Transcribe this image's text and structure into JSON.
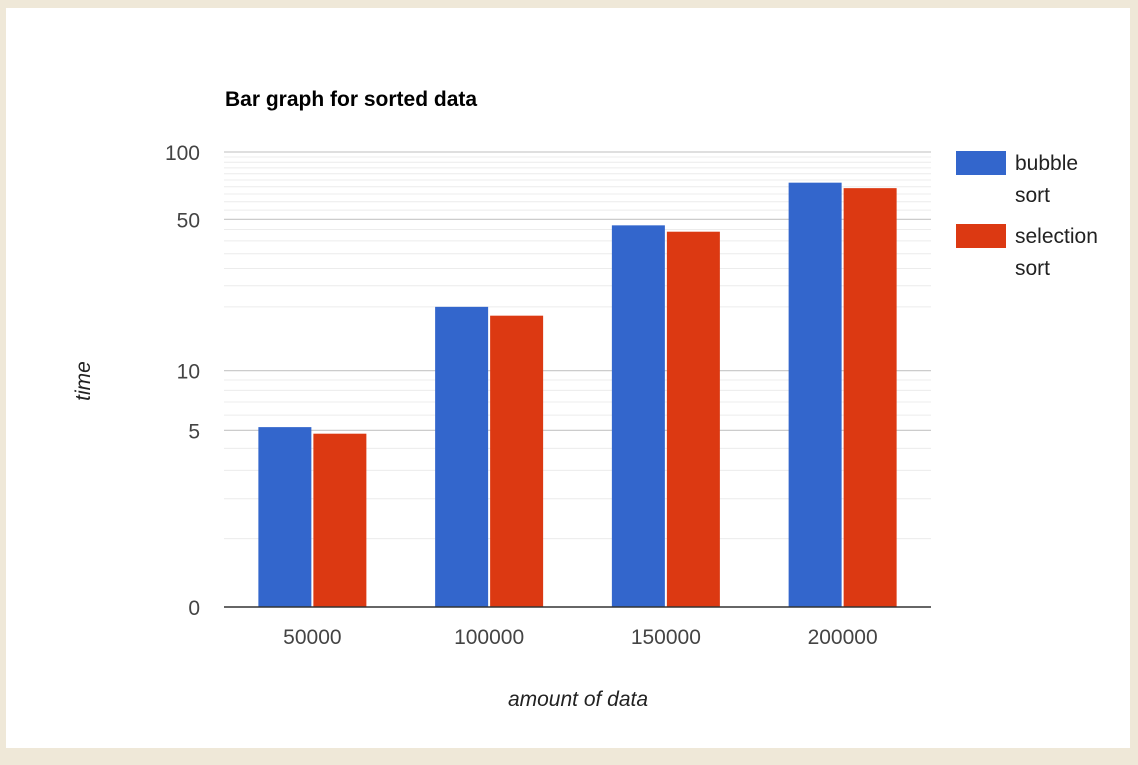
{
  "chart_data": {
    "type": "bar",
    "title": "Bar graph for sorted data",
    "xlabel": "amount of data",
    "ylabel": "time",
    "categories": [
      "50000",
      "100000",
      "150000",
      "200000"
    ],
    "series": [
      {
        "name": "bubble sort",
        "color": "#3366cc",
        "values": [
          5.2,
          20,
          47,
          73
        ]
      },
      {
        "name": "selection sort",
        "color": "#dc3912",
        "values": [
          4.8,
          18.2,
          44,
          69
        ]
      }
    ],
    "y_ticks": [
      {
        "value": 0,
        "label": "0"
      },
      {
        "value": 5,
        "label": "5"
      },
      {
        "value": 10,
        "label": "10"
      },
      {
        "value": 50,
        "label": "50"
      },
      {
        "value": 100,
        "label": "100"
      }
    ],
    "ylim": [
      0,
      100
    ],
    "y_scale": "log-like (Google Charts mirror log)",
    "grid": true,
    "legend_position": "right"
  }
}
